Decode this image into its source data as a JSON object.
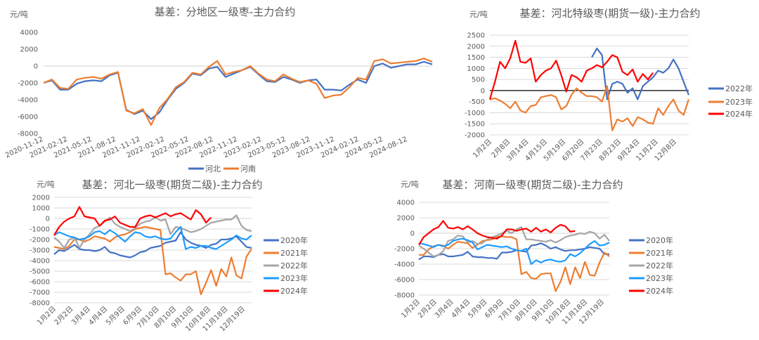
{
  "chart_data": [
    {
      "type": "line",
      "title": "基差：分地区一级枣-主力合约",
      "ylabel": "元/吨",
      "ylim": [
        -8000,
        4000
      ],
      "yticks": [
        "4000",
        "2000",
        "0",
        "-2000",
        "-4000",
        "-6000",
        "-8000"
      ],
      "ytick_values": [
        4000,
        2000,
        0,
        -2000,
        -4000,
        -6000,
        -8000
      ],
      "xtick_labels": [
        "2020-11-12",
        "2021-02-12",
        "2021-05-12",
        "2021-08-12",
        "2021-11-12",
        "2022-02-12",
        "2022-05-12",
        "2022-08-12",
        "2022-11-12",
        "2023-02-12",
        "2023-05-12",
        "2023-08-12",
        "2023-11-12",
        "2024-02-12",
        "2024-05-12",
        "2024-08-12"
      ],
      "x_note": "monthly samples Nov 2020 – Oct 2024",
      "grid": false,
      "legend_position": "bottom",
      "series": [
        {
          "name": "河北",
          "color": "#4472C4",
          "values": [
            -2000,
            -1700,
            -2800,
            -2800,
            -2100,
            -1800,
            -1700,
            -1800,
            -1100,
            -800,
            -5200,
            -5700,
            -5300,
            -6300,
            -5500,
            -4000,
            -2700,
            -2000,
            -900,
            -1100,
            -300,
            -100,
            -1300,
            -900,
            -500,
            -100,
            -1000,
            -1800,
            -1900,
            -1300,
            -1600,
            -2000,
            -1700,
            -1600,
            -2800,
            -2800,
            -2900,
            -2200,
            -1600,
            -2000,
            0,
            300,
            -200,
            0,
            200,
            200,
            500,
            200
          ]
        },
        {
          "name": "河南",
          "color": "#ED7D31",
          "values": [
            -2000,
            -1600,
            -2600,
            -2700,
            -1600,
            -1400,
            -1300,
            -1500,
            -1000,
            -700,
            -5300,
            -5600,
            -5100,
            -7000,
            -5000,
            -3900,
            -2500,
            -1900,
            -800,
            -1000,
            -100,
            600,
            -1000,
            -700,
            -500,
            0,
            -900,
            -1600,
            -1800,
            -1000,
            -1500,
            -1900,
            -1700,
            -2100,
            -3800,
            -3500,
            -3400,
            -2500,
            -1400,
            -1600,
            600,
            800,
            300,
            400,
            500,
            600,
            900,
            500
          ]
        }
      ]
    },
    {
      "type": "line",
      "title": "基差：河北特级枣(期货一级)-主力合约",
      "ylabel": "元/吨",
      "ylim": [
        -2000,
        2500
      ],
      "yticks": [
        "2500",
        "2000",
        "1500",
        "1000",
        "500",
        "0",
        "-500",
        "-1000",
        "-1500",
        "-2000"
      ],
      "ytick_values": [
        2500,
        2000,
        1500,
        1000,
        500,
        0,
        -500,
        -1000,
        -1500,
        -2000
      ],
      "xtick_labels": [
        "1月2日",
        "2月8日",
        "3月14日",
        "4月15日",
        "5月19日",
        "6月20日",
        "7月23日",
        "8月23日",
        "9月24日",
        "11月2日",
        "12月8日"
      ],
      "grid": true,
      "legend_position": "right",
      "series": [
        {
          "name": "2022年",
          "color": "#4472C4",
          "values": [
            null,
            null,
            null,
            null,
            null,
            null,
            null,
            null,
            null,
            null,
            null,
            null,
            null,
            null,
            null,
            null,
            null,
            null,
            null,
            null,
            1500,
            1900,
            1600,
            -400,
            300,
            400,
            300,
            -100,
            100,
            -400,
            200,
            400,
            600,
            900,
            800,
            1000,
            1400,
            1000,
            400,
            -200
          ]
        },
        {
          "name": "2023年",
          "color": "#ED7D31",
          "values": [
            -400,
            -350,
            -450,
            -600,
            -800,
            -500,
            -900,
            -1000,
            -700,
            -650,
            -300,
            -250,
            -200,
            -300,
            -850,
            -700,
            -200,
            100,
            -100,
            -250,
            -250,
            -300,
            -500,
            200,
            -1800,
            -1300,
            -1400,
            -1250,
            -1600,
            -1200,
            -1300,
            -1450,
            -1500,
            -800,
            -1100,
            -700,
            -400,
            -900,
            -1100,
            -400
          ]
        },
        {
          "name": "2024年",
          "color": "#FF0000",
          "values": [
            -400,
            400,
            1300,
            1000,
            1450,
            2250,
            1300,
            1250,
            1450,
            400,
            700,
            900,
            1000,
            1350,
            700,
            -50,
            700,
            600,
            400,
            900,
            1000,
            1150,
            1050,
            1300,
            1600,
            1500,
            850,
            700,
            950,
            400,
            750,
            500,
            800,
            null,
            null,
            null,
            null,
            null,
            null,
            null
          ]
        }
      ]
    },
    {
      "type": "line",
      "title": "基差：河北一级枣(期货二级)-主力合约",
      "ylabel": "元/吨",
      "ylim": [
        -8000,
        2000
      ],
      "yticks": [
        "2000",
        "1000",
        "0",
        "-1000",
        "-2000",
        "-3000",
        "-4000",
        "-5000",
        "-6000",
        "-7000",
        "-8000"
      ],
      "ytick_values": [
        2000,
        1000,
        0,
        -1000,
        -2000,
        -3000,
        -4000,
        -5000,
        -6000,
        -7000,
        -8000
      ],
      "xtick_labels": [
        "1月2日",
        "2月2日",
        "3月4日",
        "4月4日",
        "5月9日",
        "6月9日",
        "7月10日",
        "8月10日",
        "9月10日",
        "10月18日",
        "11月18日",
        "12月19日"
      ],
      "grid": true,
      "legend_position": "right",
      "series": [
        {
          "name": "2020年",
          "color": "#4472C4",
          "values": [
            -3400,
            -3000,
            -3100,
            -2800,
            -2500,
            -2900,
            -3000,
            -3000,
            -3100,
            -3000,
            -2700,
            -3200,
            -3300,
            -3500,
            -3600,
            -3700,
            -3500,
            -3200,
            -3100,
            -2800,
            -2700,
            -2600,
            -2300,
            -2200,
            -2100,
            -1300,
            -2000,
            -2300,
            -2500,
            -2600,
            -2800,
            -2500,
            -2400,
            -2000,
            -2000,
            -1900,
            -1700,
            -2200,
            -2700,
            -2800
          ]
        },
        {
          "name": "2021年",
          "color": "#ED7D31",
          "values": [
            -2700,
            -2800,
            -2900,
            -2600,
            -2000,
            -2000,
            -2200,
            -2000,
            -1700,
            -1800,
            -1900,
            -2200,
            -1800,
            -1600,
            -1500,
            -1300,
            -1000,
            -900,
            -800,
            -900,
            -1000,
            -1100,
            -5300,
            -5200,
            -5600,
            -5900,
            -5300,
            -5300,
            -5000,
            -7200,
            -6100,
            -4900,
            -6400,
            -4800,
            -5500,
            -3700,
            -5400,
            -5700,
            -3600,
            -2900
          ]
        },
        {
          "name": "2022年",
          "color": "#A5A5A5",
          "values": [
            -1800,
            -2200,
            -2800,
            -2000,
            -1800,
            -2800,
            -2000,
            -1500,
            -900,
            -700,
            -300,
            100,
            -500,
            -800,
            -1000,
            -1200,
            -900,
            -500,
            -300,
            -200,
            100,
            -200,
            -100,
            -1500,
            -800,
            -900,
            -1100,
            -1300,
            -1200,
            -1000,
            -700,
            -400,
            -300,
            -200,
            -100,
            -100,
            300,
            -700,
            -1100,
            -1200
          ]
        },
        {
          "name": "2023年",
          "color": "#1E9BFF",
          "values": [
            -1600,
            -1300,
            -1500,
            -1700,
            -1800,
            -2000,
            -1900,
            -1700,
            -1300,
            -1200,
            -1500,
            -1100,
            -1400,
            -1800,
            -2200,
            -1700,
            -1300,
            -1400,
            -1700,
            -1800,
            -1700,
            -1900,
            -2000,
            -1900,
            -1300,
            -800,
            -2900,
            -2700,
            -2800,
            -2600,
            -2600,
            -2800,
            -2900,
            -2600,
            -2300,
            -2000,
            -1600,
            -1900,
            -2000,
            -1600
          ]
        },
        {
          "name": "2024年",
          "color": "#FF0000",
          "values": [
            -1600,
            -800,
            -300,
            0,
            200,
            1100,
            200,
            100,
            0,
            -700,
            -200,
            -100,
            200,
            -400,
            -600,
            -800,
            -800,
            0,
            200,
            300,
            100,
            300,
            500,
            200,
            400,
            500,
            200,
            -100,
            800,
            400,
            -400,
            100,
            null,
            null,
            null,
            null,
            null,
            null,
            null,
            null
          ]
        }
      ]
    },
    {
      "type": "line",
      "title": "基差：河南一级枣(期货二级)-主力合约",
      "ylabel": "元/吨",
      "ylim": [
        -8000,
        4000
      ],
      "yticks": [
        "4000",
        "2000",
        "0",
        "-2000",
        "-4000",
        "-6000",
        "-8000"
      ],
      "ytick_values": [
        4000,
        2000,
        0,
        -2000,
        -4000,
        -6000,
        -8000
      ],
      "xtick_labels": [
        "1月2日",
        "2月2日",
        "3月4日",
        "4月4日",
        "5月9日",
        "6月9日",
        "7月10日",
        "8月10日",
        "9月10日",
        "10月18日",
        "11月18日",
        "12月19日"
      ],
      "grid": true,
      "legend_position": "right",
      "series": [
        {
          "name": "2020年",
          "color": "#4472C4",
          "values": [
            -3400,
            -3000,
            -3000,
            -3100,
            -2800,
            -2700,
            -3000,
            -3000,
            -2900,
            -2800,
            -2400,
            -3000,
            -3100,
            -3100,
            -3200,
            -3200,
            -3300,
            -2500,
            -2500,
            -2400,
            -2200,
            -2300,
            -2400,
            -1600,
            -1500,
            -1300,
            -1600,
            -2000,
            -1800,
            -2100,
            -2300,
            -2200,
            -2200,
            -2100,
            -2000,
            -1800,
            -1900,
            -2000,
            -2700,
            -2700
          ]
        },
        {
          "name": "2021年",
          "color": "#ED7D31",
          "values": [
            -2800,
            -2800,
            -2100,
            -1700,
            -1500,
            -1600,
            -2000,
            -1500,
            -1100,
            -1200,
            -1300,
            -1900,
            -1500,
            -1000,
            -900,
            -800,
            -500,
            -400,
            -500,
            -500,
            -800,
            -5300,
            -5000,
            -5800,
            -5900,
            -5300,
            -5200,
            -5200,
            -7500,
            -6300,
            -4400,
            -6600,
            -4400,
            -5800,
            -3700,
            -5400,
            -5500,
            -3800,
            -2500,
            -3000
          ]
        },
        {
          "name": "2022年",
          "color": "#A5A5A5",
          "values": [
            -1600,
            -2000,
            -2500,
            -3000,
            -2800,
            -2300,
            -1000,
            -800,
            -300,
            -400,
            -1200,
            -1000,
            -1400,
            -1300,
            -800,
            -500,
            -300,
            0,
            300,
            0,
            500,
            800,
            -800,
            -800,
            -900,
            -1000,
            -1100,
            -900,
            -1200,
            -900,
            -500,
            -300,
            -200,
            0,
            -100,
            200,
            0,
            -700,
            -200,
            -1000
          ]
        },
        {
          "name": "2023年",
          "color": "#1E9BFF",
          "values": [
            -1300,
            -1400,
            -1600,
            -1800,
            -1500,
            -1700,
            -1500,
            -1000,
            -800,
            -700,
            -900,
            -1200,
            -2100,
            -1800,
            -1500,
            -1600,
            -1700,
            -1800,
            -1700,
            -2000,
            -2200,
            -2300,
            -2000,
            -4000,
            -3500,
            -3800,
            -3500,
            -3400,
            -3600,
            -3700,
            -3500,
            -2700,
            -3000,
            -2600,
            -2000,
            -1400,
            -1000,
            -1600,
            -1500,
            -1200
          ]
        },
        {
          "name": "2024年",
          "color": "#FF0000",
          "values": [
            -1500,
            -500,
            0,
            500,
            800,
            1600,
            700,
            600,
            800,
            500,
            900,
            500,
            0,
            -300,
            -500,
            -600,
            -700,
            -300,
            500,
            500,
            300,
            500,
            600,
            200,
            700,
            200,
            500,
            100,
            700,
            1100,
            900,
            200,
            300,
            null,
            null,
            null,
            null,
            null,
            null,
            null
          ]
        }
      ]
    }
  ]
}
